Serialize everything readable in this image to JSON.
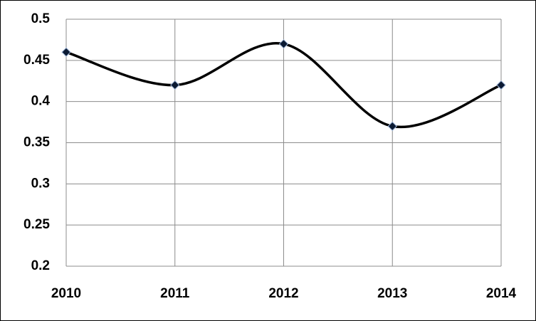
{
  "chart_data": {
    "type": "line",
    "categories": [
      "2010",
      "2011",
      "2012",
      "2013",
      "2014"
    ],
    "values": [
      0.46,
      0.42,
      0.47,
      0.37,
      0.42
    ],
    "color": "#000000",
    "marker_color": "#0b1a33",
    "ylim": [
      0.2,
      0.5
    ],
    "yticks": [
      0.2,
      0.25,
      0.3,
      0.35,
      0.4,
      0.45,
      0.5
    ],
    "grid": true,
    "smooth": true
  }
}
